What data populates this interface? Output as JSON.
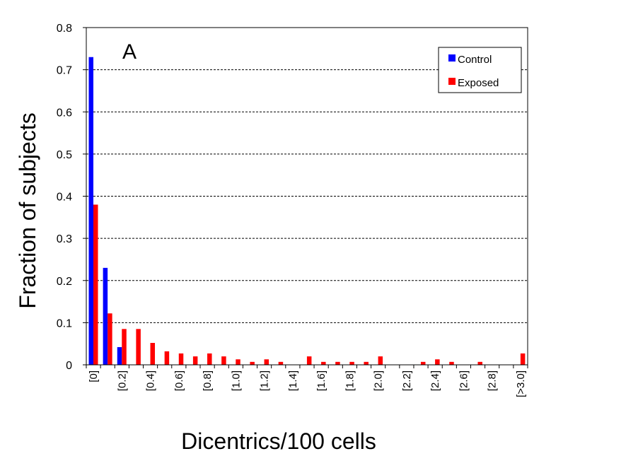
{
  "chart_data": {
    "type": "bar",
    "panel_label": "A",
    "xlabel": "Dicentrics/100 cells",
    "ylabel": "Fraction of subjects",
    "ylim": [
      0,
      0.8
    ],
    "yticks": [
      "0",
      "0.1",
      "0.2",
      "0.3",
      "0.4",
      "0.5",
      "0.6",
      "0.7",
      "0.8"
    ],
    "grid": "horizontal dashed",
    "legend_position": "top-right",
    "categories": [
      "[0]",
      "",
      "[0.2]",
      "",
      "[0.4]",
      "",
      "[0.6]",
      "",
      "[0.8]",
      "",
      "[1.0]",
      "",
      "[1.2]",
      "",
      "[1.4]",
      "",
      "[1.6]",
      "",
      "[1.8]",
      "",
      "[2.0]",
      "",
      "[2.2]",
      "",
      "[2.4]",
      "",
      "[2.6]",
      "",
      "[2.8]",
      "",
      "[>3.0]"
    ],
    "series": [
      {
        "name": "Control",
        "color": "#0000ff",
        "values": [
          0.73,
          0.23,
          0.042,
          0,
          0,
          0,
          0,
          0,
          0,
          0,
          0,
          0,
          0,
          0,
          0,
          0,
          0,
          0,
          0,
          0,
          0,
          0,
          0,
          0,
          0,
          0,
          0,
          0,
          0,
          0,
          0
        ]
      },
      {
        "name": "Exposed",
        "color": "#ff0000",
        "values": [
          0.38,
          0.122,
          0.085,
          0.085,
          0.052,
          0.032,
          0.027,
          0.02,
          0.027,
          0.02,
          0.013,
          0.007,
          0.013,
          0.007,
          0,
          0.02,
          0.007,
          0.007,
          0.007,
          0.007,
          0.02,
          0,
          0,
          0.007,
          0.013,
          0.007,
          0,
          0.007,
          0,
          0,
          0.027
        ]
      }
    ]
  }
}
